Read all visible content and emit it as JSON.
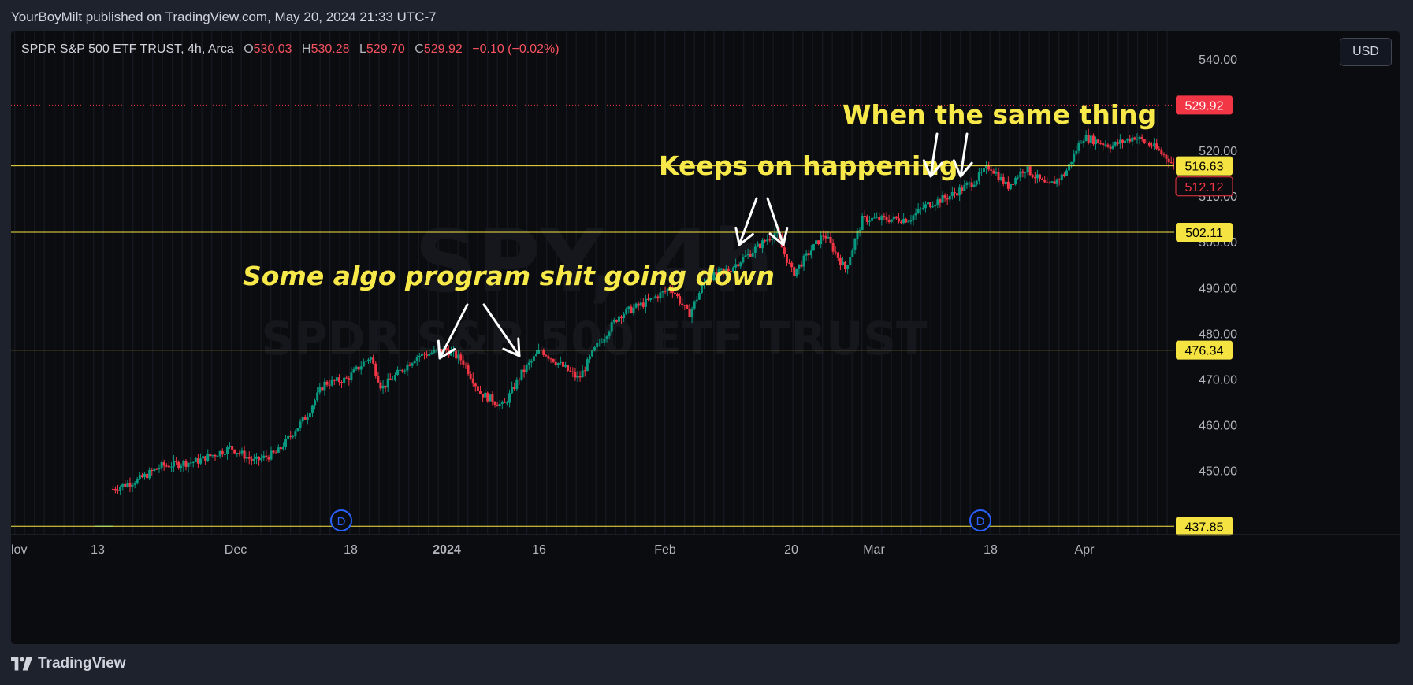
{
  "header": {
    "text": "YourBoyMilt published on TradingView.com, May 20, 2024 21:33 UTC-7"
  },
  "legend": {
    "symbol": "SPDR S&P 500 ETF TRUST, 4h, Arca",
    "open_label": "O",
    "open": "530.03",
    "high_label": "H",
    "high": "530.28",
    "low_label": "L",
    "low": "529.70",
    "close_label": "C",
    "close": "529.92",
    "change": "−0.10 (−0.02%)"
  },
  "currency_button": "USD",
  "watermark": {
    "line1": "SPY, 4h",
    "line2": "SPDR S&P 500 ETF TRUST"
  },
  "footer": {
    "logo_text": "TradingView"
  },
  "colors": {
    "up": "#089981",
    "down": "#f23645",
    "level_line": "#f5e342",
    "annotation_text": "#f8e94a",
    "price_tag_red": "#f23645",
    "price_tag_yellow": "#f5e342"
  },
  "chart_data": {
    "type": "candlestick",
    "symbol": "SPY",
    "timeframe": "4h",
    "x_tick_labels": [
      "lov",
      "13",
      "Dec",
      "18",
      "2024",
      "16",
      "Feb",
      "20",
      "Mar",
      "18",
      "Apr"
    ],
    "bold_x_tick_labels": [
      "2024"
    ],
    "ylim": [
      436,
      546
    ],
    "y_tick_values": [
      440,
      450,
      460,
      470,
      480,
      490,
      500,
      510,
      520,
      530,
      540
    ],
    "y_tick_labels": [
      "",
      "450.00",
      "460.00",
      "470.00",
      "480.00",
      "490.00",
      "500.00",
      "510.00",
      "520.00",
      "",
      "540.00"
    ],
    "horizontal_levels": [
      {
        "value": 437.85,
        "label": "437.85",
        "style": "solid",
        "color": "yellow"
      },
      {
        "value": 476.34,
        "label": "476.34",
        "style": "solid",
        "color": "yellow"
      },
      {
        "value": 502.11,
        "label": "502.11",
        "style": "solid",
        "color": "yellow"
      },
      {
        "value": 516.63,
        "label": "516.63",
        "style": "solid",
        "color": "yellow"
      }
    ],
    "last_price": {
      "value": 529.92,
      "label": "529.92",
      "style": "dotted",
      "color": "red"
    },
    "outlined_price_tag": {
      "value": 512.12,
      "label": "512.12"
    },
    "price_path": [
      {
        "x": 0.072,
        "y": 437.85
      },
      {
        "x": 0.085,
        "y": 437.85
      },
      {
        "x": 0.088,
        "y": 446
      },
      {
        "x": 0.11,
        "y": 448
      },
      {
        "x": 0.13,
        "y": 451
      },
      {
        "x": 0.16,
        "y": 452
      },
      {
        "x": 0.19,
        "y": 455
      },
      {
        "x": 0.21,
        "y": 452
      },
      {
        "x": 0.23,
        "y": 454
      },
      {
        "x": 0.255,
        "y": 462
      },
      {
        "x": 0.27,
        "y": 469
      },
      {
        "x": 0.29,
        "y": 470
      },
      {
        "x": 0.31,
        "y": 475
      },
      {
        "x": 0.32,
        "y": 468
      },
      {
        "x": 0.35,
        "y": 475
      },
      {
        "x": 0.375,
        "y": 476.5
      },
      {
        "x": 0.39,
        "y": 474
      },
      {
        "x": 0.405,
        "y": 467
      },
      {
        "x": 0.425,
        "y": 464
      },
      {
        "x": 0.44,
        "y": 471
      },
      {
        "x": 0.457,
        "y": 476.4
      },
      {
        "x": 0.475,
        "y": 473
      },
      {
        "x": 0.49,
        "y": 470
      },
      {
        "x": 0.505,
        "y": 477
      },
      {
        "x": 0.525,
        "y": 484
      },
      {
        "x": 0.55,
        "y": 487
      },
      {
        "x": 0.57,
        "y": 490
      },
      {
        "x": 0.585,
        "y": 484
      },
      {
        "x": 0.6,
        "y": 492
      },
      {
        "x": 0.62,
        "y": 494
      },
      {
        "x": 0.64,
        "y": 498
      },
      {
        "x": 0.66,
        "y": 502.1
      },
      {
        "x": 0.675,
        "y": 493
      },
      {
        "x": 0.69,
        "y": 498
      },
      {
        "x": 0.702,
        "y": 501.8
      },
      {
        "x": 0.72,
        "y": 494
      },
      {
        "x": 0.735,
        "y": 505
      },
      {
        "x": 0.755,
        "y": 505
      },
      {
        "x": 0.775,
        "y": 505
      },
      {
        "x": 0.79,
        "y": 508
      },
      {
        "x": 0.81,
        "y": 510
      },
      {
        "x": 0.83,
        "y": 513
      },
      {
        "x": 0.845,
        "y": 516.6
      },
      {
        "x": 0.86,
        "y": 512
      },
      {
        "x": 0.875,
        "y": 516.2
      },
      {
        "x": 0.895,
        "y": 512
      },
      {
        "x": 0.91,
        "y": 515
      },
      {
        "x": 0.925,
        "y": 523
      },
      {
        "x": 0.95,
        "y": 521
      },
      {
        "x": 0.97,
        "y": 523
      },
      {
        "x": 0.985,
        "y": 521
      },
      {
        "x": 1.0,
        "y": 518
      },
      {
        "x": 1.015,
        "y": 512
      },
      {
        "x": 1.03,
        "y": 517
      },
      {
        "x": 1.05,
        "y": 518
      },
      {
        "x": 1.065,
        "y": 512
      }
    ],
    "annotations": [
      {
        "text": "Some algo program shit going down",
        "style": "bold-italic"
      },
      {
        "text": "Keeps on happening",
        "style": "bold"
      },
      {
        "text": "When the same thing",
        "style": "bold"
      }
    ],
    "event_markers": [
      "D",
      "D"
    ]
  }
}
